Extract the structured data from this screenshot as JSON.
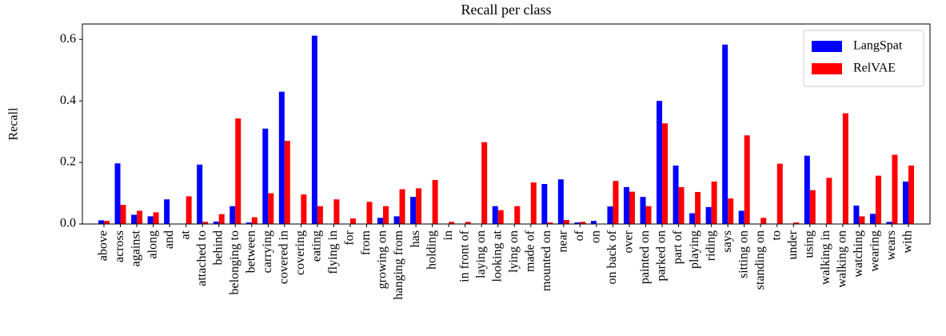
{
  "chart_data": {
    "type": "bar",
    "title": "Recall per class",
    "ylabel": "Recall",
    "categories": [
      "above",
      "across",
      "against",
      "along",
      "and",
      "at",
      "attached to",
      "behind",
      "belonging to",
      "between",
      "carrying",
      "covered in",
      "covering",
      "eating",
      "flying in",
      "for",
      "from",
      "growing on",
      "hanging from",
      "has",
      "holding",
      "in",
      "in front of",
      "laying on",
      "looking at",
      "lying on",
      "made of",
      "mounted on",
      "near",
      "of",
      "on",
      "on back of",
      "over",
      "painted on",
      "parked on",
      "part of",
      "playing",
      "riding",
      "says",
      "sitting on",
      "standing on",
      "to",
      "under",
      "using",
      "walking in",
      "walking on",
      "watching",
      "wearing",
      "wears",
      "with"
    ],
    "series": [
      {
        "name": "LangSpat",
        "color": "#0000ff",
        "values": [
          0.012,
          0.197,
          0.03,
          0.025,
          0.08,
          0,
          0.193,
          0.008,
          0.058,
          0.005,
          0.31,
          0.43,
          0,
          0.612,
          0,
          0,
          0,
          0.02,
          0.025,
          0.088,
          0,
          0,
          0,
          0,
          0.058,
          0,
          0,
          0.13,
          0.145,
          0.005,
          0.01,
          0.057,
          0.12,
          0.088,
          0.4,
          0.19,
          0.035,
          0.055,
          0.583,
          0.043,
          0,
          0,
          0,
          0.222,
          0,
          0,
          0.06,
          0.033,
          0.007,
          0.138
        ]
      },
      {
        "name": "RelVAE",
        "color": "#ff0000",
        "values": [
          0.01,
          0.062,
          0.043,
          0.038,
          0,
          0.09,
          0.007,
          0.032,
          0.343,
          0.022,
          0.1,
          0.27,
          0.096,
          0.058,
          0.08,
          0.018,
          0.072,
          0.058,
          0.113,
          0.116,
          0.143,
          0.007,
          0.007,
          0.266,
          0.045,
          0.058,
          0.135,
          0.005,
          0.013,
          0.007,
          0,
          0.14,
          0.105,
          0.058,
          0.327,
          0.12,
          0.104,
          0.138,
          0.083,
          0.288,
          0.02,
          0.196,
          0.005,
          0.11,
          0.15,
          0.36,
          0.025,
          0.157,
          0.225,
          0.19
        ]
      }
    ],
    "ylim": [
      0,
      0.65
    ],
    "yticks": [
      {
        "value": 0,
        "label": "0.0"
      },
      {
        "value": 0.2,
        "label": "0.2"
      },
      {
        "value": 0.4,
        "label": "0.4"
      },
      {
        "value": 0.6,
        "label": "0.6"
      }
    ],
    "legend": "upper right"
  }
}
